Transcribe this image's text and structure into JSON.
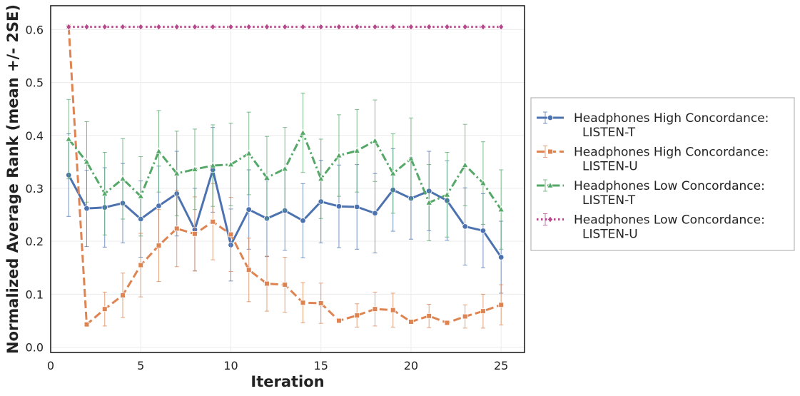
{
  "chart_data": {
    "type": "line",
    "title": "",
    "xlabel": "Iteration",
    "ylabel": "Normalized Average Rank (mean +/- 2SE)",
    "xlim": [
      0,
      26.3
    ],
    "ylim": [
      -0.01,
      0.645
    ],
    "xticks": [
      0,
      5,
      10,
      15,
      20,
      25
    ],
    "yticks": [
      0.0,
      0.1,
      0.2,
      0.3,
      0.4,
      0.5,
      0.6
    ],
    "grid": true,
    "legend_position": "right-outside",
    "x": [
      1,
      2,
      3,
      4,
      5,
      6,
      7,
      8,
      9,
      10,
      11,
      12,
      13,
      14,
      15,
      16,
      17,
      18,
      19,
      20,
      21,
      22,
      23,
      24,
      25
    ],
    "series": [
      {
        "name": "Headphones High Concordance:\n LISTEN-T",
        "legend_lines": [
          "Headphones High Concordance:",
          "LISTEN-T"
        ],
        "color": "#4c72b0",
        "dash": "solid",
        "marker": "circle",
        "values": [
          0.325,
          0.262,
          0.264,
          0.272,
          0.242,
          0.267,
          0.29,
          0.222,
          0.335,
          0.193,
          0.26,
          0.243,
          0.258,
          0.239,
          0.275,
          0.266,
          0.265,
          0.253,
          0.297,
          0.281,
          0.295,
          0.277,
          0.228,
          0.22,
          0.17
        ],
        "err": [
          0.078,
          0.072,
          0.075,
          0.075,
          0.072,
          0.075,
          0.08,
          0.078,
          0.08,
          0.068,
          0.075,
          0.072,
          0.075,
          0.07,
          0.078,
          0.078,
          0.08,
          0.075,
          0.078,
          0.077,
          0.075,
          0.075,
          0.073,
          0.07,
          0.068
        ]
      },
      {
        "name": "Headphones High Concordance:\n LISTEN-U",
        "legend_lines": [
          "Headphones High Concordance:",
          "LISTEN-U"
        ],
        "color": "#dd8452",
        "dash": "dashed",
        "marker": "square",
        "values": [
          0.605,
          0.043,
          0.072,
          0.098,
          0.155,
          0.192,
          0.224,
          0.214,
          0.237,
          0.213,
          0.146,
          0.12,
          0.118,
          0.084,
          0.083,
          0.05,
          0.06,
          0.072,
          0.07,
          0.048,
          0.059,
          0.046,
          0.058,
          0.068,
          0.08
        ],
        "err": [
          0,
          0.003,
          0.032,
          0.042,
          0.06,
          0.068,
          0.072,
          0.07,
          0.072,
          0.07,
          0.06,
          0.052,
          0.052,
          0.038,
          0.038,
          0.004,
          0.022,
          0.032,
          0.032,
          0.004,
          0.022,
          0.004,
          0.022,
          0.032,
          0.038
        ]
      },
      {
        "name": "Headphones Low Concordance:\n LISTEN-T",
        "legend_lines": [
          "Headphones Low Concordance:",
          "LISTEN-T"
        ],
        "color": "#55a868",
        "dash": "dashdot",
        "marker": "triangle",
        "values": [
          0.393,
          0.35,
          0.29,
          0.318,
          0.285,
          0.37,
          0.328,
          0.336,
          0.343,
          0.345,
          0.366,
          0.32,
          0.337,
          0.405,
          0.318,
          0.362,
          0.371,
          0.39,
          0.328,
          0.356,
          0.273,
          0.288,
          0.344,
          0.31,
          0.26
        ],
        "err": [
          0.075,
          0.076,
          0.078,
          0.076,
          0.075,
          0.077,
          0.08,
          0.076,
          0.077,
          0.078,
          0.078,
          0.078,
          0.078,
          0.075,
          0.075,
          0.077,
          0.078,
          0.077,
          0.075,
          0.077,
          0.072,
          0.08,
          0.077,
          0.078,
          0.075
        ]
      },
      {
        "name": "Headphones Low Concordance:\n LISTEN-U",
        "legend_lines": [
          "Headphones Low Concordance:",
          "LISTEN-U"
        ],
        "color": "#b5478a",
        "dash": "dotted",
        "marker": "diamond",
        "values": [
          0.605,
          0.605,
          0.605,
          0.605,
          0.605,
          0.605,
          0.605,
          0.605,
          0.605,
          0.605,
          0.605,
          0.605,
          0.605,
          0.605,
          0.605,
          0.605,
          0.605,
          0.605,
          0.605,
          0.605,
          0.605,
          0.605,
          0.605,
          0.605,
          0.605
        ],
        "err": [
          0,
          0,
          0,
          0,
          0,
          0,
          0,
          0,
          0,
          0,
          0,
          0,
          0,
          0,
          0,
          0,
          0,
          0,
          0,
          0,
          0,
          0,
          0,
          0,
          0
        ]
      }
    ]
  }
}
